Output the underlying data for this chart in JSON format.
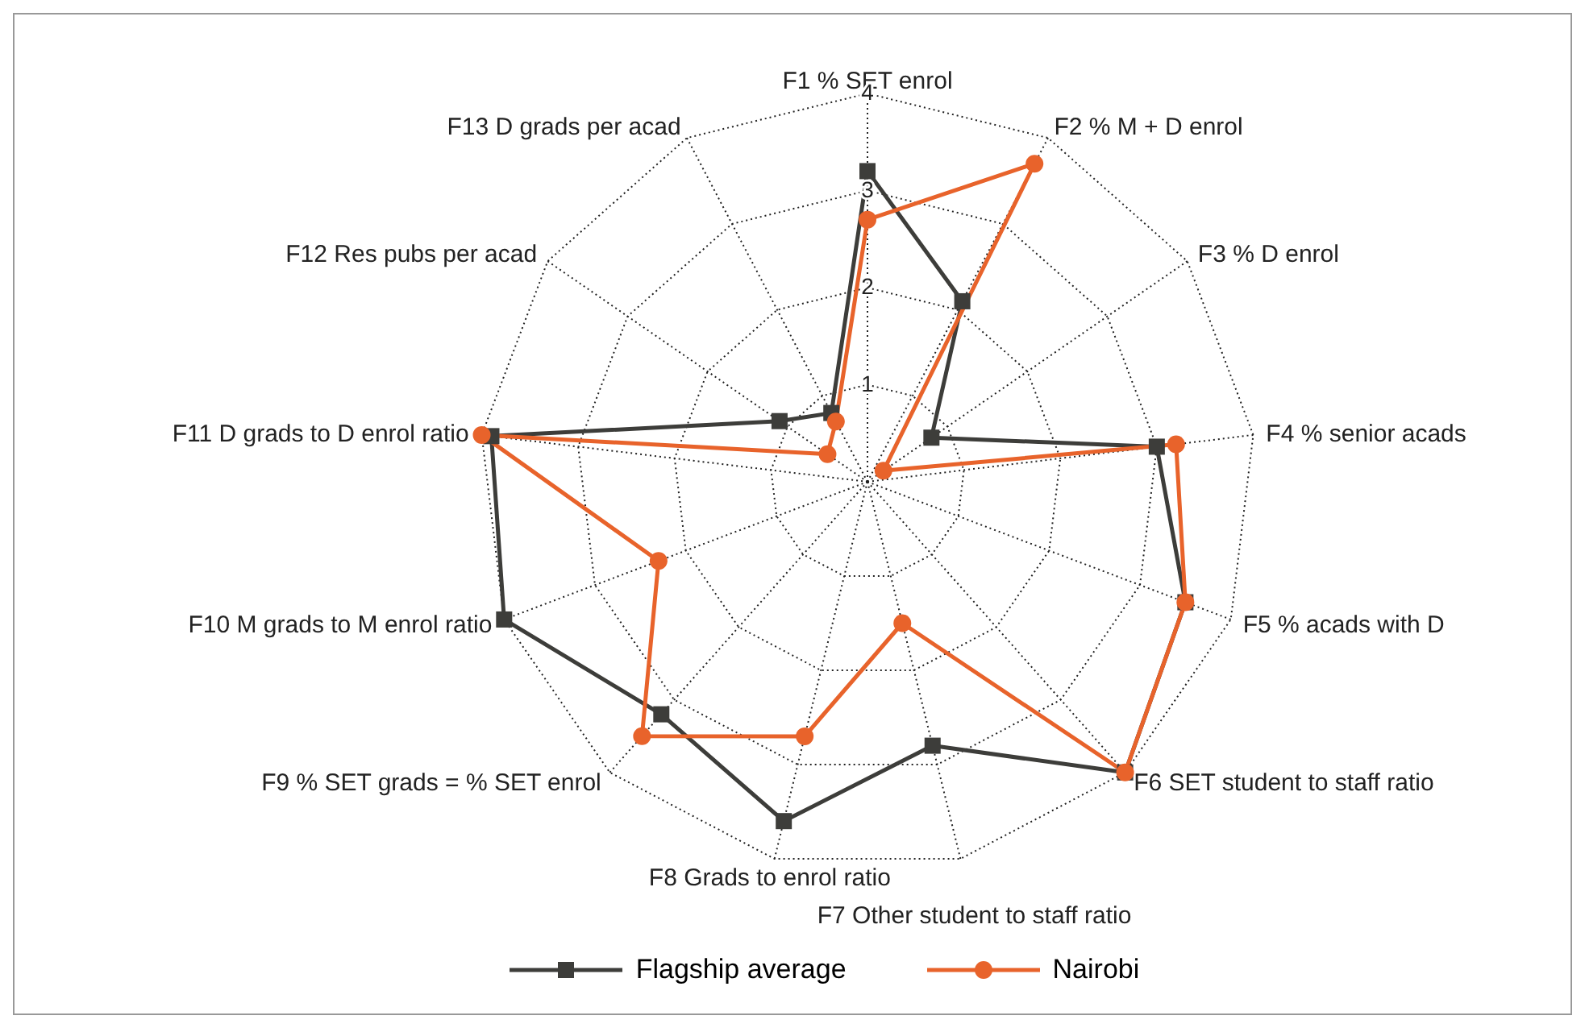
{
  "chart_data": {
    "type": "radar",
    "categories": [
      "F1 % SET enrol",
      "F2 % M + D enrol",
      "F3 % D enrol",
      "F4 % senior acads",
      "F5 % acads with D",
      "F6 SET student to staff ratio",
      "F7 Other student to staff ratio",
      "F8 Grads to enrol ratio",
      "F9 % SET grads = % SET enrol",
      "F10 M grads to M enrol ratio",
      "F11 D grads to D enrol ratio",
      "F12 Res pubs per acad",
      "F13 D grads per acad"
    ],
    "series": [
      {
        "name": "Flagship average",
        "color": "#3d3d3a",
        "marker": "square",
        "values": [
          3.2,
          2.1,
          0.8,
          3.0,
          3.5,
          4.0,
          2.8,
          3.6,
          3.2,
          4.0,
          3.9,
          1.1,
          0.8
        ]
      },
      {
        "name": "Nairobi",
        "color": "#e8632b",
        "marker": "circle",
        "values": [
          2.7,
          3.7,
          0.2,
          3.2,
          3.5,
          4.0,
          1.5,
          2.7,
          3.5,
          2.3,
          4.0,
          0.5,
          0.7
        ]
      }
    ],
    "ylim": [
      0,
      4
    ],
    "yticks": [
      1,
      2,
      3,
      4
    ],
    "grid": true,
    "legend": "bottom"
  }
}
